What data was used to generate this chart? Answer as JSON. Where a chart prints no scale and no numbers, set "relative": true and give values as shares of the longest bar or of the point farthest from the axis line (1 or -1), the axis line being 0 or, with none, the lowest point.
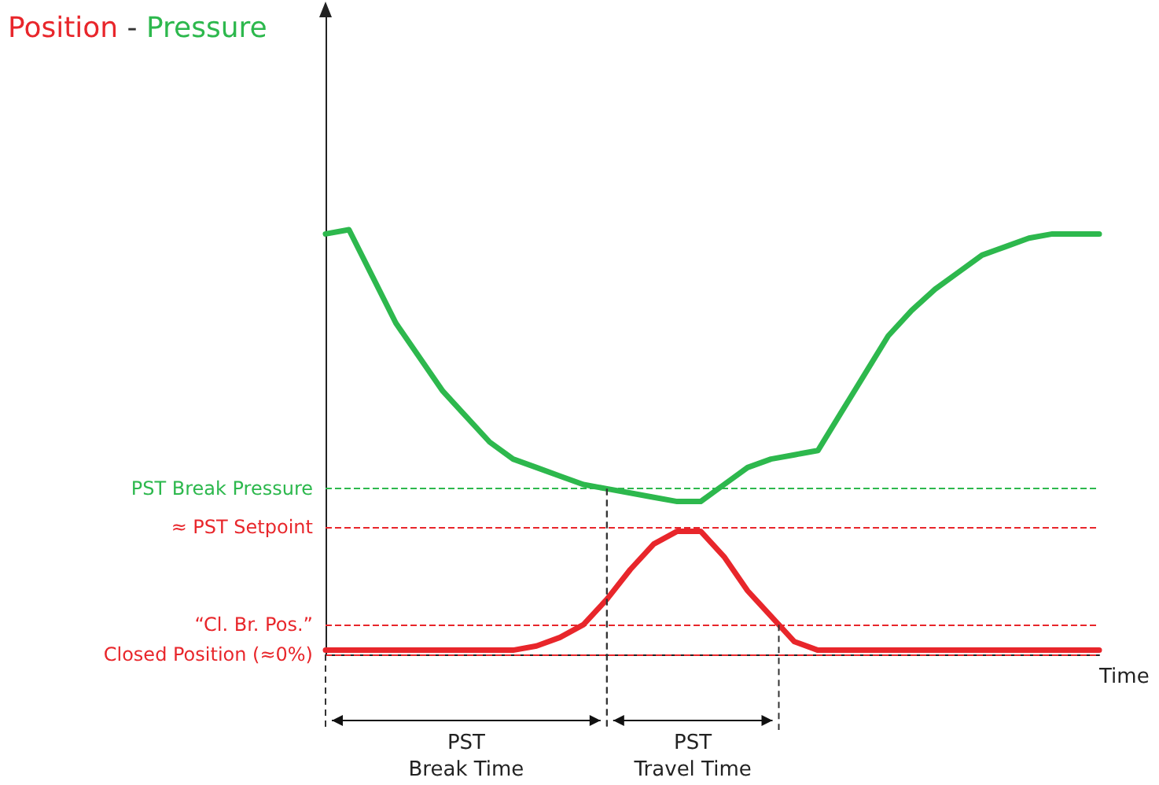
{
  "chart_data": {
    "type": "line",
    "title": "Position - Pressure",
    "xlabel": "Time",
    "relative": true,
    "marker": "none",
    "line_style": "solid",
    "grid": false,
    "categories": [
      null,
      null,
      null,
      null,
      null,
      null,
      null,
      null,
      null,
      null,
      null,
      null,
      null,
      null,
      null,
      null,
      null,
      null,
      null,
      null,
      null,
      null,
      null,
      null,
      null,
      null,
      null,
      null,
      null,
      null,
      null,
      null,
      null,
      null
    ],
    "series": [
      {
        "color": "#2db84d",
        "values": [
          0.99,
          1.0,
          0.89,
          0.78,
          0.7,
          0.62,
          0.56,
          0.5,
          0.46,
          0.44,
          0.42,
          0.4,
          0.39,
          0.38,
          0.37,
          0.36,
          0.36,
          0.4,
          0.44,
          0.46,
          0.47,
          0.48,
          0.57,
          0.66,
          0.75,
          0.81,
          0.86,
          0.9,
          0.94,
          0.96,
          0.98,
          0.99,
          0.99,
          0.99
        ]
      },
      {
        "color": "#e8262b",
        "values": [
          0.01,
          0.01,
          0.01,
          0.01,
          0.01,
          0.01,
          0.01,
          0.01,
          0.01,
          0.02,
          0.04,
          0.07,
          0.13,
          0.2,
          0.26,
          0.29,
          0.29,
          0.23,
          0.15,
          0.09,
          0.03,
          0.01,
          0.01,
          0.01,
          0.01,
          0.01,
          0.01,
          0.01,
          0.01,
          0.01,
          0.01,
          0.01,
          0.01,
          0.01
        ]
      }
    ],
    "ref_lines": [
      {
        "axis": "y",
        "value": 0.39,
        "label": "PST Break Pressure",
        "color": "#2db84d",
        "line_style": "dashed"
      },
      {
        "axis": "y",
        "value": 0.3,
        "label": "≈ PST Setpoint",
        "color": "#e8262b",
        "line_style": "dashed"
      },
      {
        "axis": "y",
        "value": 0.07,
        "label": "“Cl. Br. Pos.”",
        "color": "#e8262b",
        "line_style": "dashed"
      },
      {
        "axis": "y",
        "value": 0,
        "label": "Closed Position (≈0%)",
        "color": "#e8262b",
        "line_style": "dashed"
      }
    ],
    "annotations": [
      "PST\nBreak Time",
      "PST\nTravel Time"
    ]
  }
}
